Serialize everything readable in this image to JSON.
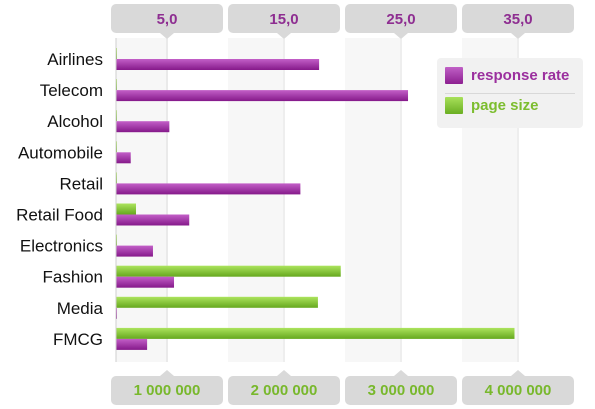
{
  "chart_data": {
    "type": "bar",
    "orientation": "horizontal",
    "categories": [
      "Airlines",
      "Telecom",
      "Alcohol",
      "Automobile",
      "Retail",
      "Retail Food",
      "Electronics",
      "Fashion",
      "Media",
      "FMCG"
    ],
    "series": [
      {
        "name": "response rate",
        "axis": "top",
        "color": "#9b2f9e",
        "values": [
          18.0,
          25.6,
          5.2,
          1.9,
          16.4,
          6.9,
          3.8,
          5.6,
          0.5,
          3.3
        ]
      },
      {
        "name": "page size",
        "axis": "bottom",
        "color": "#7cbd2f",
        "values": [
          75000,
          150000,
          180000,
          230000,
          310000,
          735000,
          505000,
          2485000,
          2290000,
          3970000
        ]
      }
    ],
    "top_axis": {
      "ticks": [
        5,
        15,
        25,
        35
      ],
      "tick_labels": [
        "5,0",
        "15,0",
        "25,0",
        "35,0"
      ],
      "range": [
        0,
        40
      ]
    },
    "bottom_axis": {
      "ticks": [
        1000000,
        2000000,
        3000000,
        4000000
      ],
      "tick_labels": [
        "1 000 000",
        "2 000 000",
        "3 000 000",
        "4 000 000"
      ],
      "range": [
        0,
        4500000
      ]
    },
    "legend_position": "top-right",
    "grid": "vertical"
  }
}
